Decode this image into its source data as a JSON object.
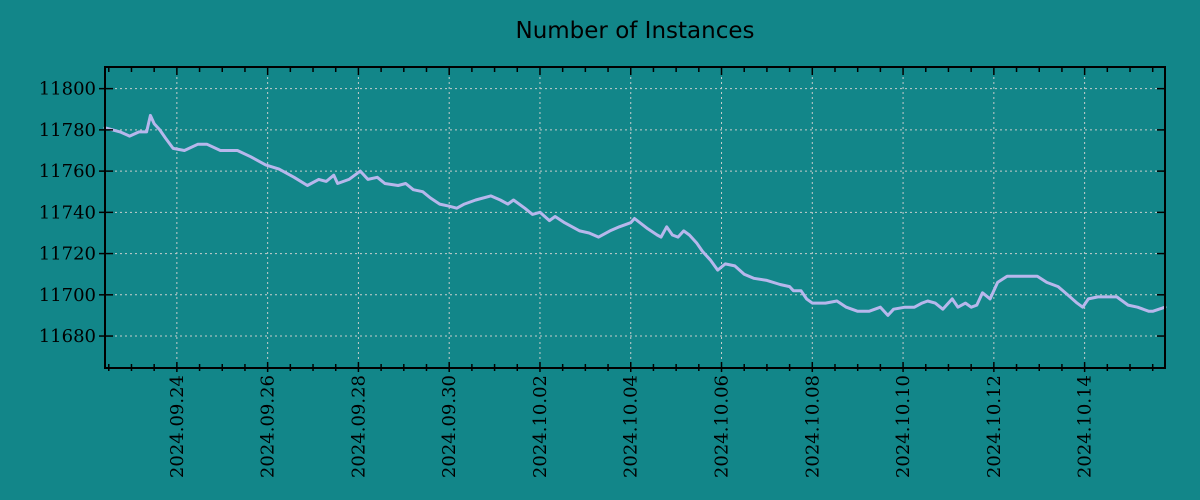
{
  "colors": {
    "background": "#128689",
    "line": "#b7b7ec",
    "grid": "#c6cdcc",
    "axis": "#000000",
    "text": "#000000"
  },
  "chart_data": {
    "type": "line",
    "title": "Number of Instances",
    "xlabel": "",
    "ylabel": "",
    "legend": null,
    "grid": true,
    "grid_style": "dashed",
    "x_range": [
      "2024-09-22T10:00",
      "2024-10-15T18:30"
    ],
    "y_range": [
      11664.5,
      11810.5
    ],
    "x_minor_step_hours": 12,
    "x_ticks": [
      {
        "t": "2024-09-24T00:00",
        "label": "2024.09.24"
      },
      {
        "t": "2024-09-26T00:00",
        "label": "2024.09.26"
      },
      {
        "t": "2024-09-28T00:00",
        "label": "2024.09.28"
      },
      {
        "t": "2024-09-30T00:00",
        "label": "2024.09.30"
      },
      {
        "t": "2024-10-02T00:00",
        "label": "2024.10.02"
      },
      {
        "t": "2024-10-04T00:00",
        "label": "2024.10.04"
      },
      {
        "t": "2024-10-06T00:00",
        "label": "2024.10.06"
      },
      {
        "t": "2024-10-08T00:00",
        "label": "2024.10.08"
      },
      {
        "t": "2024-10-10T00:00",
        "label": "2024.10.10"
      },
      {
        "t": "2024-10-12T00:00",
        "label": "2024.10.12"
      },
      {
        "t": "2024-10-14T00:00",
        "label": "2024.10.14"
      }
    ],
    "y_ticks": [
      {
        "v": 11680,
        "label": "11680"
      },
      {
        "v": 11700,
        "label": "11700"
      },
      {
        "v": 11720,
        "label": "11720"
      },
      {
        "v": 11740,
        "label": "11740"
      },
      {
        "v": 11760,
        "label": "11760"
      },
      {
        "v": 11780,
        "label": "11780"
      },
      {
        "v": 11800,
        "label": "11800"
      }
    ],
    "series": [
      {
        "name": "instances",
        "color": "#b7b7ec",
        "points": [
          [
            "2024-09-22T10:00",
            11781
          ],
          [
            "2024-09-22T18:00",
            11779
          ],
          [
            "2024-09-22T23:00",
            11777
          ],
          [
            "2024-09-23T04:00",
            11779
          ],
          [
            "2024-09-23T08:00",
            11779
          ],
          [
            "2024-09-23T10:00",
            11787
          ],
          [
            "2024-09-23T12:00",
            11783
          ],
          [
            "2024-09-23T15:00",
            11780
          ],
          [
            "2024-09-23T18:00",
            11776
          ],
          [
            "2024-09-23T22:00",
            11771
          ],
          [
            "2024-09-24T04:00",
            11770
          ],
          [
            "2024-09-24T11:00",
            11773
          ],
          [
            "2024-09-24T16:00",
            11773
          ],
          [
            "2024-09-24T23:00",
            11770
          ],
          [
            "2024-09-25T08:00",
            11770
          ],
          [
            "2024-09-25T15:00",
            11767
          ],
          [
            "2024-09-25T23:00",
            11763
          ],
          [
            "2024-09-26T06:00",
            11761
          ],
          [
            "2024-09-26T14:00",
            11757
          ],
          [
            "2024-09-26T21:00",
            11753
          ],
          [
            "2024-09-27T03:00",
            11756
          ],
          [
            "2024-09-27T07:00",
            11755
          ],
          [
            "2024-09-27T11:00",
            11758
          ],
          [
            "2024-09-27T13:00",
            11754
          ],
          [
            "2024-09-27T19:00",
            11756
          ],
          [
            "2024-09-28T01:00",
            11760
          ],
          [
            "2024-09-28T05:00",
            11756
          ],
          [
            "2024-09-28T10:00",
            11757
          ],
          [
            "2024-09-28T14:00",
            11754
          ],
          [
            "2024-09-28T21:00",
            11753
          ],
          [
            "2024-09-29T01:00",
            11754
          ],
          [
            "2024-09-29T05:00",
            11751
          ],
          [
            "2024-09-29T10:00",
            11750
          ],
          [
            "2024-09-29T14:00",
            11747
          ],
          [
            "2024-09-29T19:00",
            11744
          ],
          [
            "2024-09-30T00:00",
            11743
          ],
          [
            "2024-09-30T04:00",
            11742
          ],
          [
            "2024-09-30T08:00",
            11744
          ],
          [
            "2024-09-30T14:00",
            11746
          ],
          [
            "2024-09-30T22:00",
            11748
          ],
          [
            "2024-10-01T03:00",
            11746
          ],
          [
            "2024-10-01T07:00",
            11744
          ],
          [
            "2024-10-01T10:00",
            11746
          ],
          [
            "2024-10-01T16:00",
            11742
          ],
          [
            "2024-10-01T20:00",
            11739
          ],
          [
            "2024-10-02T00:00",
            11740
          ],
          [
            "2024-10-02T05:00",
            11736
          ],
          [
            "2024-10-02T08:00",
            11738
          ],
          [
            "2024-10-02T13:00",
            11735
          ],
          [
            "2024-10-02T21:00",
            11731
          ],
          [
            "2024-10-03T02:00",
            11730
          ],
          [
            "2024-10-03T07:00",
            11728
          ],
          [
            "2024-10-03T13:00",
            11731
          ],
          [
            "2024-10-03T18:00",
            11733
          ],
          [
            "2024-10-04T00:00",
            11735
          ],
          [
            "2024-10-04T02:00",
            11737
          ],
          [
            "2024-10-04T09:00",
            11732
          ],
          [
            "2024-10-04T14:00",
            11729
          ],
          [
            "2024-10-04T16:00",
            11728
          ],
          [
            "2024-10-04T19:00",
            11733
          ],
          [
            "2024-10-04T22:00",
            11729
          ],
          [
            "2024-10-05T01:00",
            11728
          ],
          [
            "2024-10-05T04:00",
            11731
          ],
          [
            "2024-10-05T07:00",
            11729
          ],
          [
            "2024-10-05T11:00",
            11725
          ],
          [
            "2024-10-05T14:00",
            11721
          ],
          [
            "2024-10-05T18:00",
            11717
          ],
          [
            "2024-10-05T22:00",
            11712
          ],
          [
            "2024-10-06T02:00",
            11715
          ],
          [
            "2024-10-06T07:00",
            11714
          ],
          [
            "2024-10-06T12:00",
            11710
          ],
          [
            "2024-10-06T17:00",
            11708
          ],
          [
            "2024-10-07T00:00",
            11707
          ],
          [
            "2024-10-07T07:00",
            11705
          ],
          [
            "2024-10-07T12:00",
            11704
          ],
          [
            "2024-10-07T14:00",
            11702
          ],
          [
            "2024-10-07T18:00",
            11702
          ],
          [
            "2024-10-07T21:00",
            11698
          ],
          [
            "2024-10-08T00:00",
            11696
          ],
          [
            "2024-10-08T07:00",
            11696
          ],
          [
            "2024-10-08T13:00",
            11697
          ],
          [
            "2024-10-08T18:00",
            11694
          ],
          [
            "2024-10-09T00:00",
            11692
          ],
          [
            "2024-10-09T06:00",
            11692
          ],
          [
            "2024-10-09T12:00",
            11694
          ],
          [
            "2024-10-09T16:00",
            11690
          ],
          [
            "2024-10-09T19:00",
            11693
          ],
          [
            "2024-10-10T01:00",
            11694
          ],
          [
            "2024-10-10T06:00",
            11694
          ],
          [
            "2024-10-10T10:00",
            11696
          ],
          [
            "2024-10-10T13:00",
            11697
          ],
          [
            "2024-10-10T17:00",
            11696
          ],
          [
            "2024-10-10T21:00",
            11693
          ],
          [
            "2024-10-11T02:00",
            11698
          ],
          [
            "2024-10-11T05:00",
            11694
          ],
          [
            "2024-10-11T09:00",
            11696
          ],
          [
            "2024-10-11T12:00",
            11694
          ],
          [
            "2024-10-11T15:00",
            11695
          ],
          [
            "2024-10-11T18:00",
            11701
          ],
          [
            "2024-10-11T22:00",
            11698
          ],
          [
            "2024-10-12T02:00",
            11706
          ],
          [
            "2024-10-12T07:00",
            11709
          ],
          [
            "2024-10-12T11:00",
            11709
          ],
          [
            "2024-10-12T23:00",
            11709
          ],
          [
            "2024-10-13T04:00",
            11706
          ],
          [
            "2024-10-13T10:00",
            11704
          ],
          [
            "2024-10-13T15:00",
            11700
          ],
          [
            "2024-10-13T20:00",
            11696
          ],
          [
            "2024-10-13T23:00",
            11694
          ],
          [
            "2024-10-14T02:00",
            11698
          ],
          [
            "2024-10-14T07:00",
            11699
          ],
          [
            "2024-10-14T17:00",
            11699
          ],
          [
            "2024-10-14T23:00",
            11695
          ],
          [
            "2024-10-15T04:00",
            11694
          ],
          [
            "2024-10-15T10:00",
            11692
          ],
          [
            "2024-10-15T12:00",
            11692
          ],
          [
            "2024-10-15T18:30",
            11694
          ]
        ]
      }
    ]
  }
}
